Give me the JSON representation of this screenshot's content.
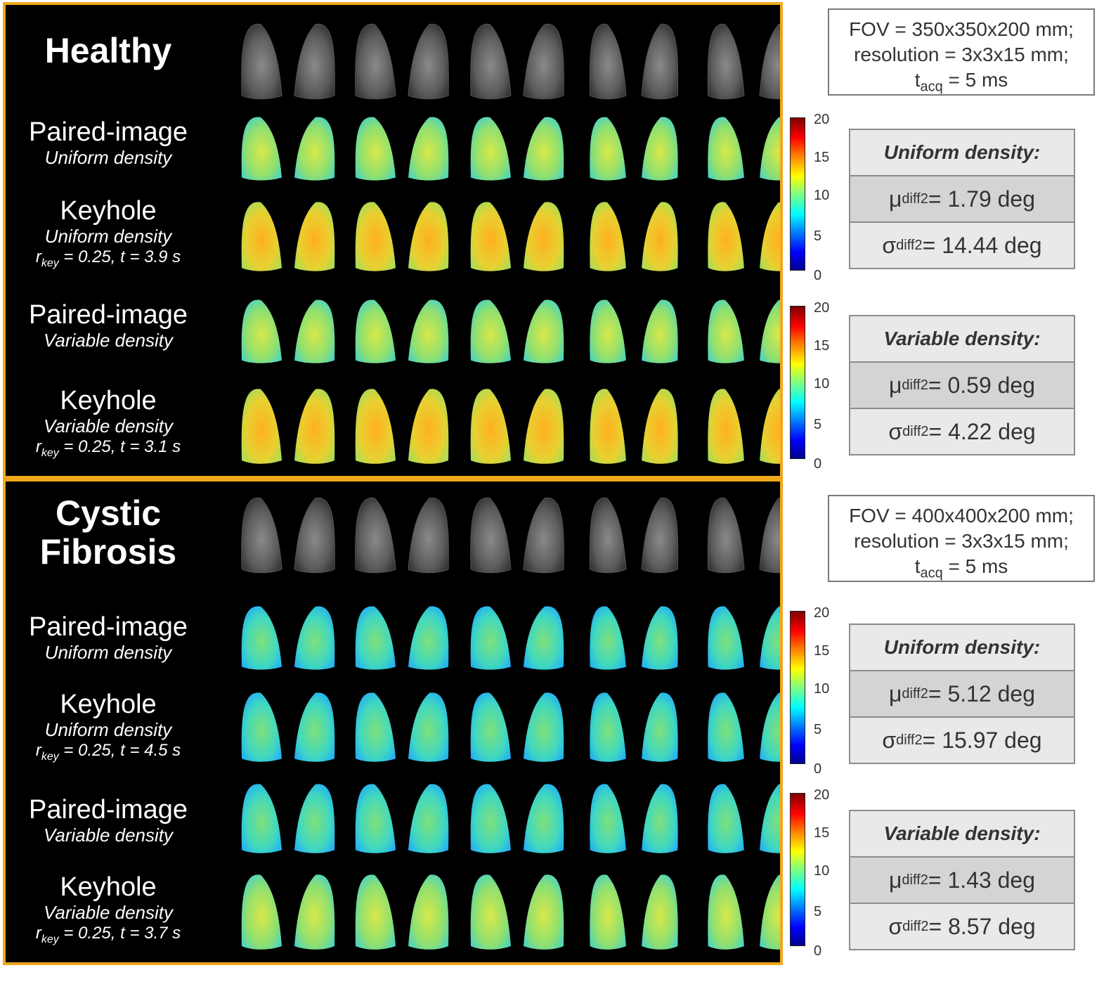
{
  "healthy": {
    "title": "Healthy",
    "rows": [
      {
        "main": "Paired-image",
        "sub": "Uniform density"
      },
      {
        "main": "Keyhole",
        "sub": "Uniform density",
        "r_label": "r",
        "r_sub": "key",
        "param_rest": " = 0.25, t = 3.9 s"
      },
      {
        "main": "Paired-image",
        "sub": "Variable density"
      },
      {
        "main": "Keyhole",
        "sub": "Variable density",
        "r_label": "r",
        "r_sub": "key",
        "param_rest": " = 0.25, t = 3.1 s"
      }
    ],
    "info": {
      "fov": "FOV = 350x350x200 mm;",
      "resolution": "resolution = 3x3x15 mm;",
      "t_label": "t",
      "t_sub": "acq",
      "t_rest": " = 5 ms"
    },
    "uniform": {
      "header": "Uniform density:",
      "mu_sym": "μ",
      "mu_sub": "diff",
      "mu_sup": "2",
      "mu_value": " = 1.79 deg",
      "sigma_sym": "σ",
      "sigma_sub": "diff",
      "sigma_sup": "2",
      "sigma_value": " = 14.44 deg"
    },
    "variable": {
      "header": "Variable density:",
      "mu_sym": "μ",
      "mu_sub": "diff",
      "mu_sup": "2",
      "mu_value": " = 0.59 deg",
      "sigma_sym": "σ",
      "sigma_sub": "diff",
      "sigma_sup": "2",
      "sigma_value": " = 4.22 deg"
    }
  },
  "cf": {
    "title_line1": "Cystic",
    "title_line2": "Fibrosis",
    "rows": [
      {
        "main": "Paired-image",
        "sub": "Uniform density"
      },
      {
        "main": "Keyhole",
        "sub": "Uniform density",
        "r_label": "r",
        "r_sub": "key",
        "param_rest": " = 0.25, t = 4.5 s"
      },
      {
        "main": "Paired-image",
        "sub": "Variable density"
      },
      {
        "main": "Keyhole",
        "sub": "Variable density",
        "r_label": "r",
        "r_sub": "key",
        "param_rest": " = 0.25, t = 3.7 s"
      }
    ],
    "info": {
      "fov": "FOV = 400x400x200 mm;",
      "resolution": "resolution = 3x3x15 mm;",
      "t_label": "t",
      "t_sub": "acq",
      "t_rest": " = 5 ms"
    },
    "uniform": {
      "header": "Uniform density:",
      "mu_sym": "μ",
      "mu_sub": "diff",
      "mu_sup": "2",
      "mu_value": " = 5.12 deg",
      "sigma_sym": "σ",
      "sigma_sub": "diff",
      "sigma_sup": "2",
      "sigma_value": " = 15.97 deg"
    },
    "variable": {
      "header": "Variable density:",
      "mu_sym": "μ",
      "mu_sub": "diff",
      "mu_sup": "2",
      "mu_value": " = 1.43 deg",
      "sigma_sym": "σ",
      "sigma_sub": "diff",
      "sigma_sup": "2",
      "sigma_value": " = 8.57 deg"
    }
  },
  "colorbar": {
    "ticks": [
      "20",
      "15",
      "10",
      "5",
      "0"
    ],
    "min": 0,
    "max": 20
  },
  "colors": {
    "panel_border": "#f2a71b",
    "panel_bg": "#000000"
  }
}
